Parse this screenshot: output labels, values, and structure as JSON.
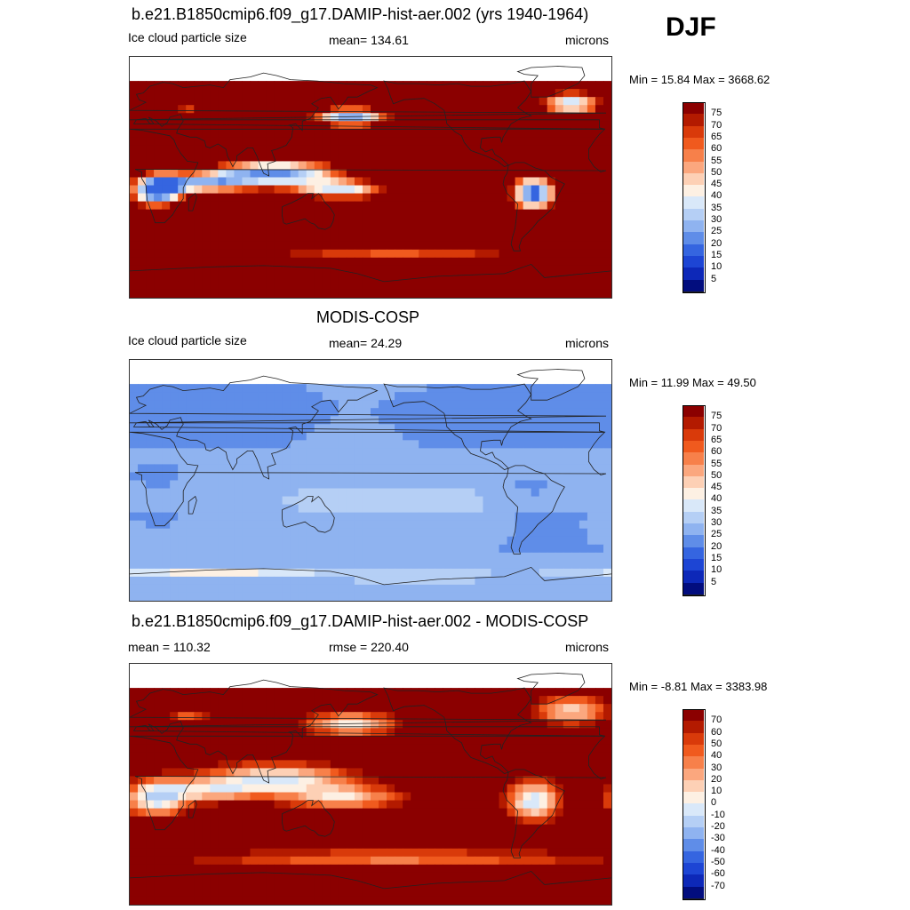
{
  "season": "DJF",
  "panels": [
    {
      "id": "model",
      "title": "b.e21.B1850cmip6.f09_g17.DAMIP-hist-aer.002 (yrs 1940-1964)",
      "left_label": "Ice cloud particle size",
      "center_label": "mean= 134.61",
      "right_label": "microns",
      "minmax": "Min =  15.84 Max = 3668.62",
      "colorbar": {
        "labels": [
          "75",
          "70",
          "65",
          "60",
          "55",
          "50",
          "45",
          "40",
          "35",
          "30",
          "25",
          "20",
          "15",
          "10",
          "5"
        ],
        "colors": [
          "#8b0000",
          "#b31a00",
          "#d93a0a",
          "#f05a1e",
          "#f7804a",
          "#fba77e",
          "#fdd0b5",
          "#fdf0e3",
          "#d9e8f9",
          "#b5cff5",
          "#8fb3f0",
          "#5f8de8",
          "#3565e0",
          "#1d45d4",
          "#0d28b8",
          "#020d7e"
        ]
      },
      "field": "model"
    },
    {
      "id": "obs",
      "title": "MODIS-COSP",
      "left_label": "Ice cloud particle size",
      "center_label": "mean=  24.29",
      "right_label": "microns",
      "minmax": "Min =  11.99 Max =  49.50",
      "colorbar": {
        "labels": [
          "75",
          "70",
          "65",
          "60",
          "55",
          "50",
          "45",
          "40",
          "35",
          "30",
          "25",
          "20",
          "15",
          "10",
          "5"
        ],
        "colors": [
          "#8b0000",
          "#b31a00",
          "#d93a0a",
          "#f05a1e",
          "#f7804a",
          "#fba77e",
          "#fdd0b5",
          "#fdf0e3",
          "#d9e8f9",
          "#b5cff5",
          "#8fb3f0",
          "#5f8de8",
          "#3565e0",
          "#1d45d4",
          "#0d28b8",
          "#020d7e"
        ]
      },
      "field": "obs"
    },
    {
      "id": "diff",
      "title": "b.e21.B1850cmip6.f09_g17.DAMIP-hist-aer.002 - MODIS-COSP",
      "left_label": "mean = 110.32",
      "center_label": "rmse = 220.40",
      "right_label": "microns",
      "minmax": "Min =  -8.81 Max = 3383.98",
      "colorbar": {
        "labels": [
          "70",
          "60",
          "50",
          "40",
          "30",
          "20",
          "10",
          "0",
          "-10",
          "-20",
          "-30",
          "-40",
          "-50",
          "-60",
          "-70"
        ],
        "colors": [
          "#8b0000",
          "#b31a00",
          "#d93a0a",
          "#f05a1e",
          "#f7804a",
          "#fba77e",
          "#fdd0b5",
          "#fdf0e3",
          "#d9e8f9",
          "#b5cff5",
          "#8fb3f0",
          "#5f8de8",
          "#3565e0",
          "#1d45d4",
          "#0d28b8",
          "#020d7e"
        ]
      },
      "field": "diff"
    }
  ],
  "chart_data": [
    {
      "type": "heatmap",
      "title": "b.e21.B1850cmip6.f09_g17.DAMIP-hist-aer.002 (yrs 1940-1964)",
      "variable": "Ice cloud particle size",
      "units": "microns",
      "mean": 134.61,
      "min": 15.84,
      "max": 3668.62,
      "levels": [
        5,
        10,
        15,
        20,
        25,
        30,
        35,
        40,
        45,
        50,
        55,
        60,
        65,
        70,
        75
      ]
    },
    {
      "type": "heatmap",
      "title": "MODIS-COSP",
      "variable": "Ice cloud particle size",
      "units": "microns",
      "mean": 24.29,
      "min": 11.99,
      "max": 49.5,
      "levels": [
        5,
        10,
        15,
        20,
        25,
        30,
        35,
        40,
        45,
        50,
        55,
        60,
        65,
        70,
        75
      ]
    },
    {
      "type": "heatmap",
      "title": "b.e21.B1850cmip6.f09_g17.DAMIP-hist-aer.002 - MODIS-COSP",
      "units": "microns",
      "mean": 110.32,
      "rmse": 220.4,
      "min": -8.81,
      "max": 3383.98,
      "levels": [
        -70,
        -60,
        -50,
        -40,
        -30,
        -20,
        -10,
        0,
        10,
        20,
        30,
        40,
        50,
        60,
        70
      ]
    }
  ]
}
